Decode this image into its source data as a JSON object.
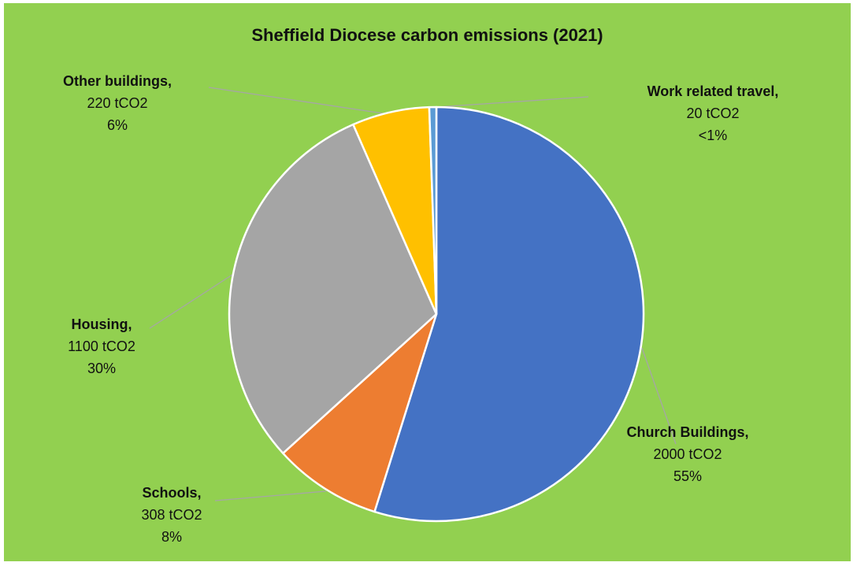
{
  "colors": {
    "background": "#92d050",
    "slice_border": "#ffffff",
    "leader_line": "#a6a6a6"
  },
  "chart_data": {
    "type": "pie",
    "title": "Sheffield Diocese carbon emissions (2021)",
    "unit": "tCO2",
    "start_angle_deg": 0,
    "direction": "clockwise",
    "slices": [
      {
        "name": "Church Buildings",
        "label": "Church Buildings,",
        "value": 2000,
        "value_label": "2000 tCO2",
        "percent_label": "55%",
        "color": "#4472c4"
      },
      {
        "name": "Schools",
        "label": "Schools,",
        "value": 308,
        "value_label": "308 tCO2",
        "percent_label": "8%",
        "color": "#ed7d31"
      },
      {
        "name": "Housing",
        "label": "Housing,",
        "value": 1100,
        "value_label": "1100 tCO2",
        "percent_label": "30%",
        "color": "#a5a5a5"
      },
      {
        "name": "Other buildings",
        "label": "Other buildings,",
        "value": 220,
        "value_label": "220 tCO2",
        "percent_label": "6%",
        "color": "#ffc000"
      },
      {
        "name": "Work related travel",
        "label": "Work related travel,",
        "value": 20,
        "value_label": "20 tCO2",
        "percent_label": "<1%",
        "color": "#5b9bd5"
      }
    ]
  }
}
